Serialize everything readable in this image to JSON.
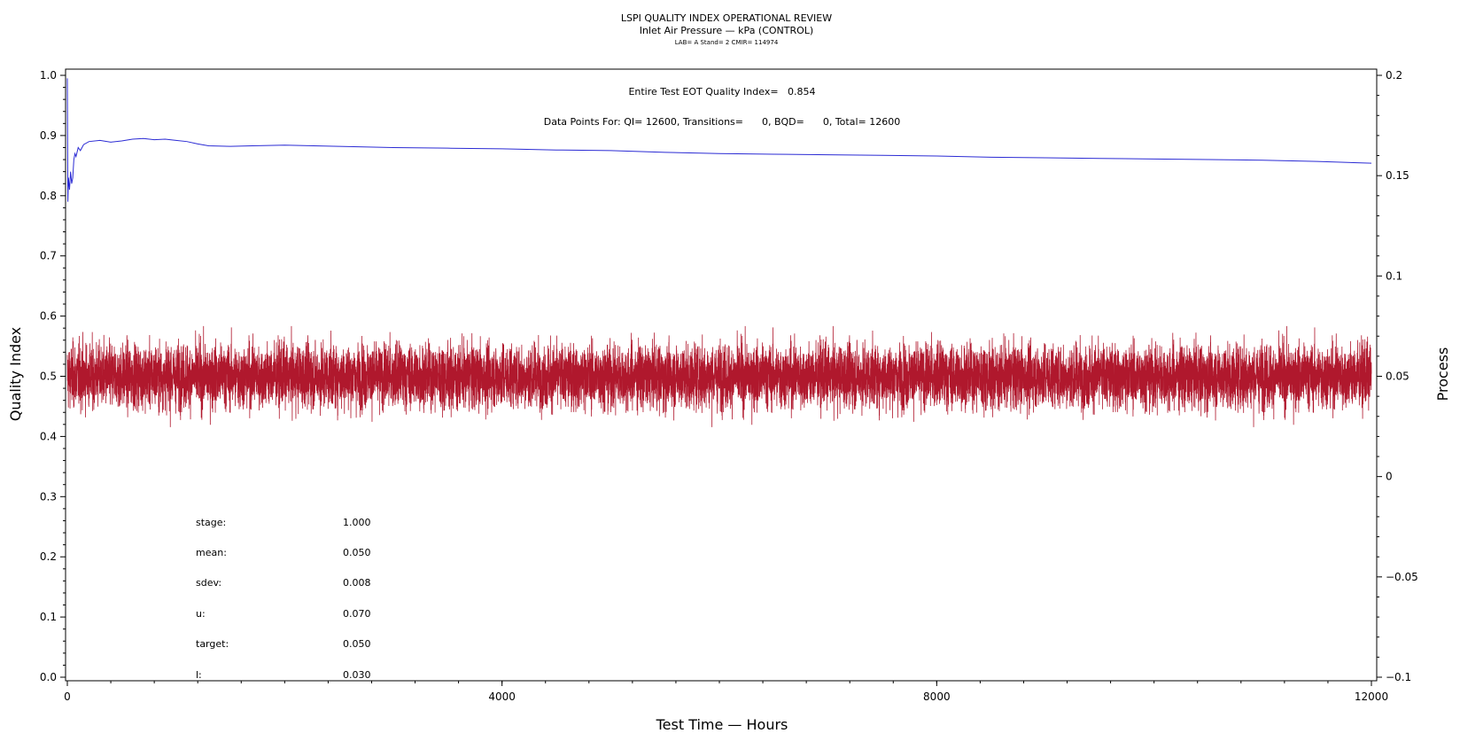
{
  "chart_data": {
    "type": "line",
    "title": "LSPI QUALITY INDEX OPERATIONAL REVIEW",
    "subtitle": "Inlet Air Pressure — kPa (CONTROL)",
    "sub_subtitle": "LAB= A Stand= 2 CMIR= 114974",
    "xlabel": "Test Time — Hours",
    "ylabel_left": "Quality Index",
    "ylabel_right": "Process",
    "xlim": [
      0,
      12000
    ],
    "ylim_left": [
      0.0,
      1.0
    ],
    "ylim_right": [
      -0.1,
      0.2
    ],
    "x_ticks": [
      "0",
      "4000",
      "8000",
      "12000"
    ],
    "y_ticks_left": [
      "0.0",
      "0.1",
      "0.2",
      "0.3",
      "0.4",
      "0.5",
      "0.6",
      "0.7",
      "0.8",
      "0.9",
      "1.0"
    ],
    "y_ticks_right": [
      "−0.1",
      "−0.05",
      "0",
      "0.05",
      "0.1",
      "0.15",
      "0.2"
    ],
    "grid": false,
    "annotations": {
      "quality_index_text": "Entire Test EOT Quality Index=   0.854",
      "data_points_text": "Data Points For: QI= 12600, Transitions=      0, BQD=      0, Total= 12600"
    },
    "stats": [
      {
        "label": "stage:",
        "value": "1.000"
      },
      {
        "label": "mean:",
        "value": "0.050"
      },
      {
        "label": "sdev:",
        "value": "0.008"
      },
      {
        "label": "u:",
        "value": "0.070"
      },
      {
        "label": "target:",
        "value": "0.050"
      },
      {
        "label": "l:",
        "value": "0.030"
      }
    ],
    "series": [
      {
        "axis": "left",
        "color": "#2b2bd4",
        "x": [
          0,
          5,
          10,
          20,
          30,
          40,
          50,
          60,
          70,
          80,
          100,
          120,
          150,
          200,
          300,
          400,
          500,
          600,
          700,
          800,
          900,
          1000,
          1100,
          1200,
          1300,
          1500,
          1700,
          2000,
          2500,
          3000,
          3500,
          4000,
          4500,
          5000,
          5500,
          6000,
          6500,
          7000,
          7500,
          8000,
          8500,
          9000,
          9500,
          10000,
          10500,
          11000,
          11500,
          12000
        ],
        "values": [
          0.995,
          0.79,
          0.83,
          0.81,
          0.84,
          0.82,
          0.83,
          0.86,
          0.87,
          0.865,
          0.88,
          0.875,
          0.885,
          0.89,
          0.892,
          0.889,
          0.891,
          0.894,
          0.895,
          0.893,
          0.894,
          0.892,
          0.89,
          0.886,
          0.883,
          0.882,
          0.883,
          0.884,
          0.882,
          0.88,
          0.879,
          0.878,
          0.876,
          0.875,
          0.872,
          0.87,
          0.869,
          0.868,
          0.867,
          0.866,
          0.864,
          0.863,
          0.862,
          0.861,
          0.86,
          0.859,
          0.857,
          0.854
        ]
      },
      {
        "axis": "right",
        "color": "#b0182d",
        "type": "noise_band",
        "n_points": 12600,
        "mean": 0.05,
        "sdev": 0.008,
        "min_observed": 0.02,
        "max_observed": 0.075
      }
    ]
  }
}
